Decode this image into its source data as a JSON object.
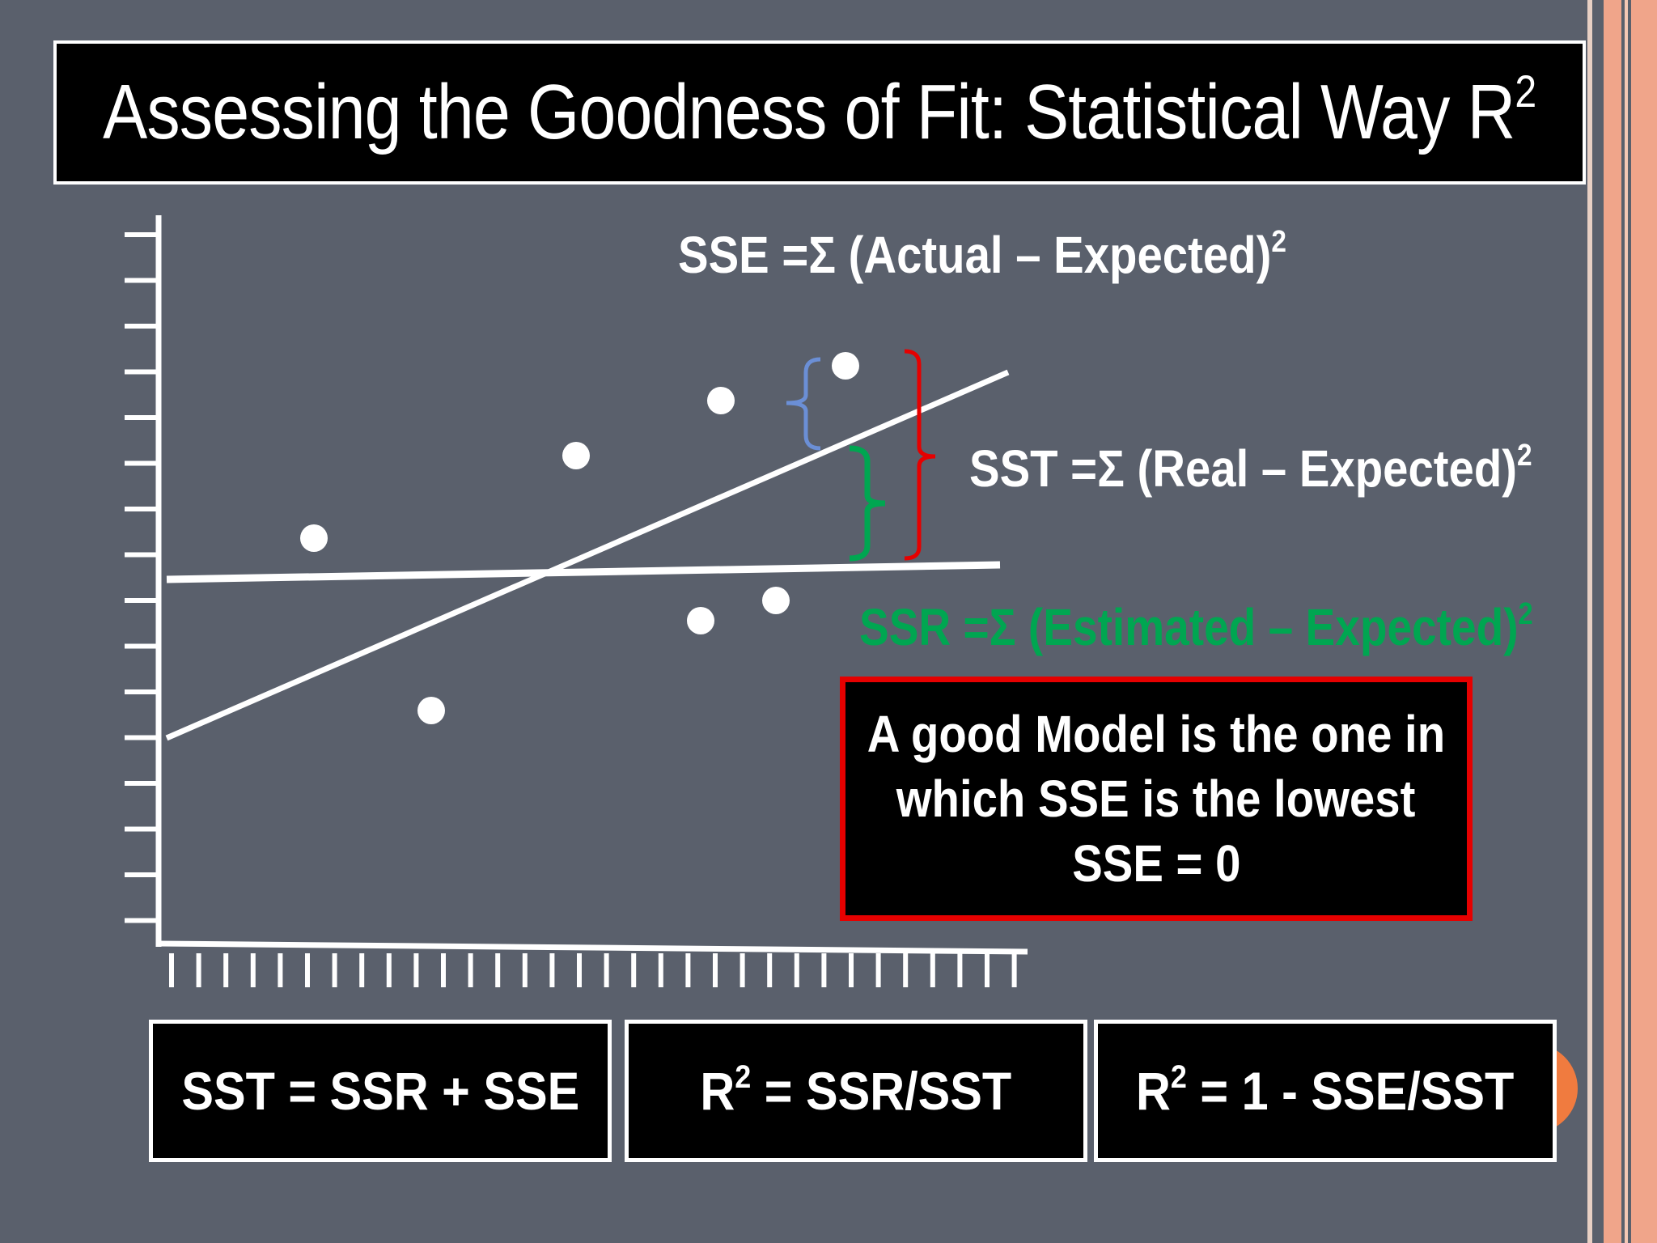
{
  "title": {
    "main": "Assessing the Goodness of Fit: Statistical Way R",
    "sup": "2"
  },
  "sse_formula": {
    "text": "SSE =Σ (Actual – Expected)",
    "sup": "2"
  },
  "sst_formula": {
    "text": "SST =Σ (Real – Expected)",
    "sup": "2"
  },
  "ssr_formula": {
    "text": "SSR =Σ (Estimated – Expected)",
    "sup": "2"
  },
  "message": {
    "line1": "A good Model is the one in",
    "line2": "which SSE is the lowest",
    "line3": "SSE = 0"
  },
  "bottom_boxes": {
    "box1": {
      "text": "SST = SSR + SSE"
    },
    "box2": {
      "pre": "R",
      "sup": "2",
      "post": " = SSR/SST"
    },
    "box3": {
      "pre": "R",
      "sup": "2",
      "post": " = 1 - SSE/SST"
    }
  },
  "colors": {
    "background": "#5a606c",
    "sse_bracket": "#6b8fd6",
    "ssr_bracket": "#00a651",
    "sst_bracket": "#e60000",
    "accent_orange": "#f07b3f",
    "strip_salmon": "#f0a58a"
  }
}
